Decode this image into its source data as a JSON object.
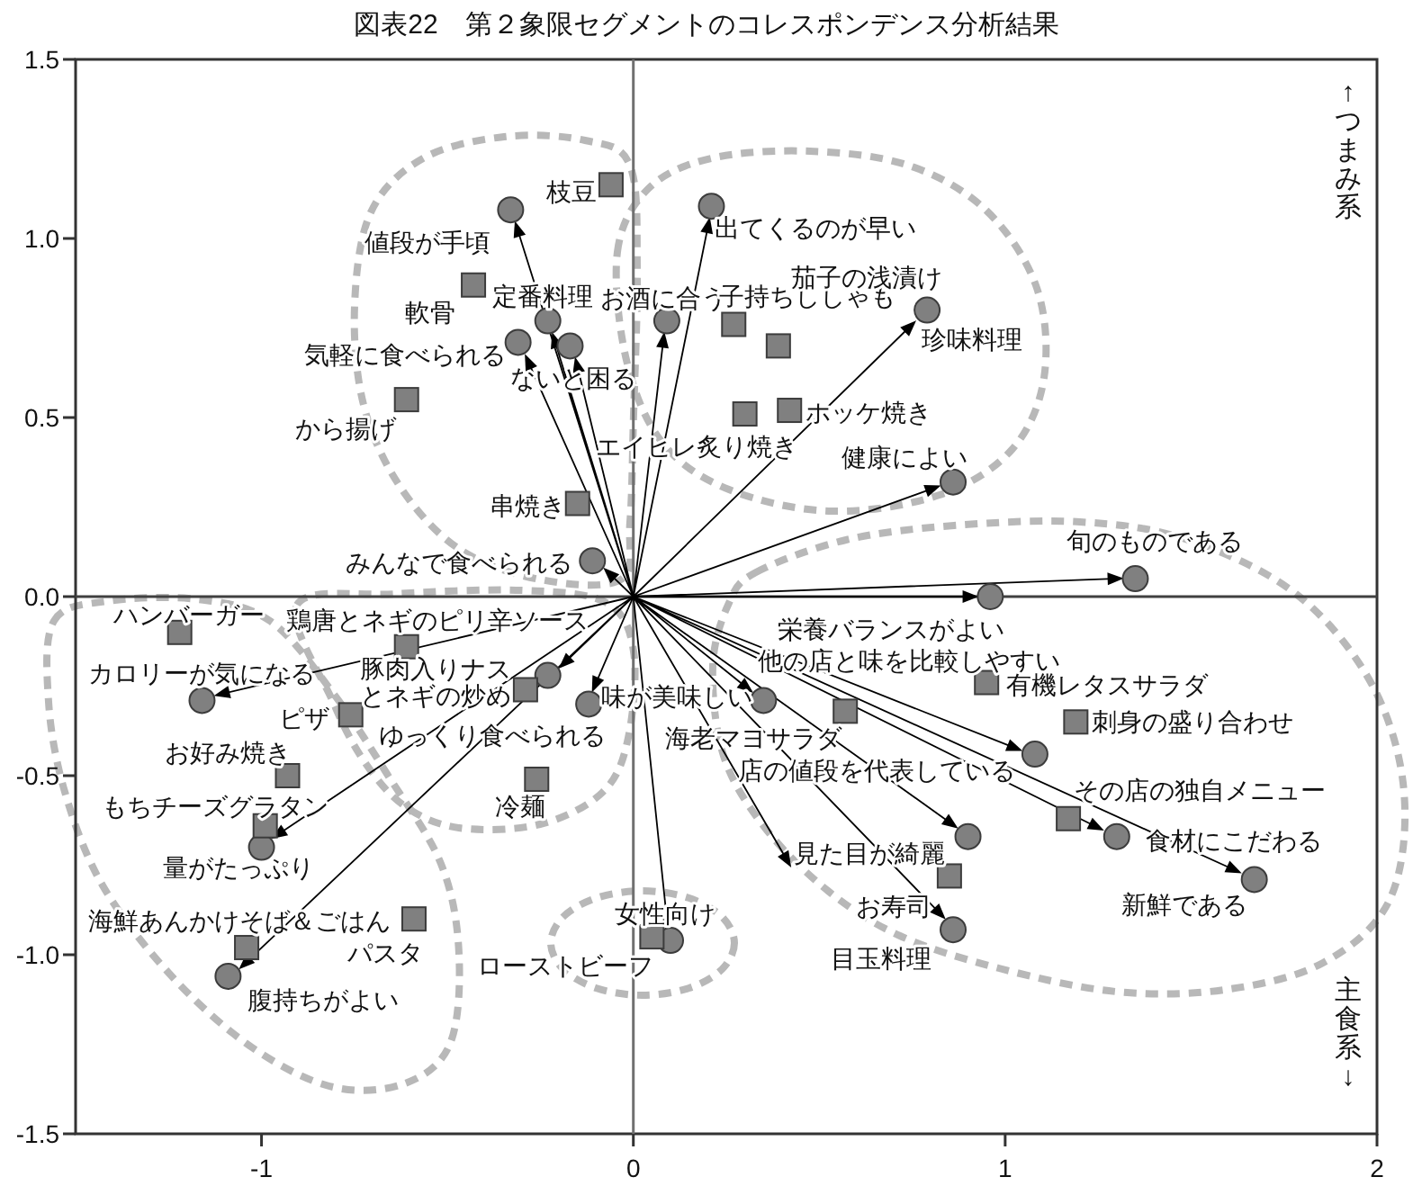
{
  "chart_data": {
    "type": "scatter",
    "title": "図表22　第２象限セグメントのコレスポンデンス分析結果",
    "xlim": [
      -1.5,
      2
    ],
    "xticks": [
      -1,
      0,
      1,
      2
    ],
    "ylim": [
      -1.5,
      1.5
    ],
    "yticks": [
      1.5,
      {
        "value": 1,
        "label": "1.0"
      },
      0.5,
      {
        "value": 0,
        "label": "0.0"
      },
      -0.5,
      {
        "value": -1,
        "label": "-1.0"
      },
      -1.5
    ],
    "ref_lines": [
      {
        "axis": "x",
        "value": 0,
        "color": "#707070"
      },
      {
        "axis": "y",
        "value": 0,
        "color": "#404040"
      }
    ],
    "series": [
      {
        "type": "line",
        "color": "#000000",
        "marker": "triangle",
        "x": [
          0,
          -0.31,
          null,
          0,
          -0.21,
          null,
          0,
          -0.28,
          null,
          0,
          -0.15,
          null,
          0,
          0.08,
          null,
          0,
          0.2,
          null,
          0,
          0.74,
          null,
          0,
          0.8,
          null,
          0,
          -0.06,
          null,
          0,
          1.29,
          null,
          0,
          0.9,
          null,
          0,
          0.3,
          null,
          0,
          1.02,
          null,
          0,
          1.24,
          null,
          0,
          1.61,
          null,
          0,
          0.85,
          null,
          0,
          0.82,
          null,
          0,
          -0.1,
          null,
          0,
          -0.18,
          null,
          0,
          0.09,
          null,
          0,
          -1.1,
          null,
          0,
          -0.95,
          null,
          0,
          -1.04,
          null,
          0,
          0.41
        ],
        "values": [
          0,
          1.02,
          null,
          0,
          0.71,
          null,
          0,
          0.65,
          null,
          0,
          0.64,
          null,
          0,
          0.71,
          null,
          0,
          1.03,
          null,
          0,
          0.75,
          null,
          0,
          0.3,
          null,
          0,
          0.06,
          null,
          0,
          0.05,
          null,
          0,
          0.0,
          null,
          0,
          -0.25,
          null,
          0,
          -0.42,
          null,
          0,
          -0.64,
          null,
          0,
          -0.76,
          null,
          0,
          -0.63,
          null,
          0,
          -0.88,
          null,
          0,
          -0.24,
          null,
          0,
          -0.18,
          null,
          0,
          -0.9,
          null,
          0,
          -0.27,
          null,
          0,
          -0.66,
          null,
          0,
          -1.02,
          null,
          0,
          -0.73
        ]
      },
      {
        "marker": "circle",
        "color": "#808080",
        "x": [
          -0.33,
          -0.23,
          -0.31,
          -0.17,
          0.09,
          0.21,
          0.79,
          0.86,
          -0.11,
          1.35,
          0.96,
          0.35,
          1.08,
          1.3,
          1.67,
          0.9,
          0.86,
          -0.12,
          -0.23,
          0.1,
          -1.16,
          -1.0,
          -1.09
        ],
        "values": [
          1.08,
          0.77,
          0.71,
          0.7,
          0.77,
          1.09,
          0.8,
          0.32,
          0.1,
          0.05,
          0.0,
          -0.29,
          -0.44,
          -0.67,
          -0.79,
          -0.67,
          -0.93,
          -0.3,
          -0.22,
          -0.96,
          -0.29,
          -0.7,
          -1.06
        ]
      },
      {
        "marker": "square",
        "color": "#808080",
        "x": [
          -0.06,
          -0.43,
          -0.61,
          0.27,
          0.39,
          0.42,
          0.3,
          -0.15,
          -1.22,
          -0.61,
          -0.29,
          -0.76,
          -0.93,
          -0.99,
          -1.04,
          -0.59,
          -0.26,
          0.05,
          0.57,
          0.95,
          1.19,
          1.17,
          0.85
        ],
        "values": [
          1.15,
          0.87,
          0.55,
          0.76,
          0.7,
          0.52,
          0.51,
          0.26,
          -0.1,
          -0.14,
          -0.26,
          -0.33,
          -0.5,
          -0.64,
          -0.98,
          -0.9,
          -0.51,
          -0.95,
          -0.32,
          -0.24,
          -0.35,
          -0.62,
          -0.78
        ]
      }
    ],
    "annotations": [
      "↑つまみ系",
      "主食系↓",
      {
        "text": "値段が手頃",
        "x": -0.33,
        "y": 1.08
      },
      {
        "text": "定番料理",
        "x": -0.23,
        "y": 0.77
      },
      {
        "text": "気軽に食べられる",
        "x": -0.31,
        "y": 0.71
      },
      {
        "text": "ないと困る",
        "x": -0.17,
        "y": 0.7
      },
      {
        "text": "お酒に合う",
        "x": 0.09,
        "y": 0.77
      },
      {
        "text": "出てくるのが早い",
        "x": 0.21,
        "y": 1.09
      },
      {
        "text": "珍味料理",
        "x": 0.79,
        "y": 0.8
      },
      {
        "text": "健康によい",
        "x": 0.86,
        "y": 0.32
      },
      {
        "text": "みんなで食べられる",
        "x": -0.11,
        "y": 0.1
      },
      {
        "text": "旬のものである",
        "x": 1.35,
        "y": 0.05
      },
      {
        "text": "栄養バランスがよい",
        "x": 0.96,
        "y": 0.0
      },
      {
        "text": "他の店と味を比較しやすい",
        "x": 0.35,
        "y": -0.29
      },
      {
        "text": "店の値段を代表している",
        "x": 1.08,
        "y": -0.44
      },
      {
        "text": "食材にこだわる",
        "x": 1.3,
        "y": -0.67
      },
      {
        "text": "新鮮である",
        "x": 1.67,
        "y": -0.79
      },
      {
        "text": "見た目が綺麗",
        "x": 0.9,
        "y": -0.67
      },
      {
        "text": "目玉料理",
        "x": 0.86,
        "y": -0.93
      },
      {
        "text": "味が美味しい",
        "x": -0.12,
        "y": -0.3
      },
      {
        "text": "ゆっくり食べられる",
        "x": -0.23,
        "y": -0.22
      },
      {
        "text": "女性向け",
        "x": 0.1,
        "y": -0.96
      },
      {
        "text": "カロリーが気になる",
        "x": -1.16,
        "y": -0.29
      },
      {
        "text": "量がたっぷり",
        "x": -1.0,
        "y": -0.7
      },
      {
        "text": "腹持ちがよい",
        "x": -1.09,
        "y": -1.06
      },
      {
        "text": "枝豆",
        "x": -0.06,
        "y": 1.15
      },
      {
        "text": "軟骨",
        "x": -0.43,
        "y": 0.87
      },
      {
        "text": "から揚げ",
        "x": -0.61,
        "y": 0.55
      },
      {
        "text": "子持ちししゃも",
        "x": 0.27,
        "y": 0.76
      },
      {
        "text": "茄子の浅漬け",
        "x": 0.39,
        "y": 0.7
      },
      {
        "text": "ホッケ焼き",
        "x": 0.42,
        "y": 0.52
      },
      {
        "text": "エイヒレ炙り焼き",
        "x": 0.3,
        "y": 0.51
      },
      {
        "text": "串焼き",
        "x": -0.15,
        "y": 0.26
      },
      {
        "text": "ハンバーガー",
        "x": -1.22,
        "y": -0.1
      },
      {
        "text": "鶏唐とネギのピリ辛ソース",
        "x": -0.61,
        "y": -0.14
      },
      {
        "text": "豚肉入りナスとネギの炒め",
        "x": -0.29,
        "y": -0.26
      },
      {
        "text": "ピザ",
        "x": -0.76,
        "y": -0.33
      },
      {
        "text": "お好み焼き",
        "x": -0.93,
        "y": -0.5
      },
      {
        "text": "もちチーズグラタン",
        "x": -0.99,
        "y": -0.64
      },
      {
        "text": "海鮮あんかけそば＆ごはん",
        "x": -1.04,
        "y": -0.98
      },
      {
        "text": "パスタ",
        "x": -0.59,
        "y": -0.9
      },
      {
        "text": "冷麺",
        "x": -0.26,
        "y": -0.51
      },
      {
        "text": "ローストビーフ",
        "x": 0.05,
        "y": -0.95
      },
      {
        "text": "海老マヨサラダ",
        "x": 0.57,
        "y": -0.32
      },
      {
        "text": "有機レタスサラダ",
        "x": 0.95,
        "y": -0.24
      },
      {
        "text": "刺身の盛り合わせ",
        "x": 1.19,
        "y": -0.35
      },
      {
        "text": "その店の独自メニュー",
        "x": 1.17,
        "y": -0.62
      },
      {
        "text": "お寿司",
        "x": 0.85,
        "y": -0.78
      }
    ]
  }
}
